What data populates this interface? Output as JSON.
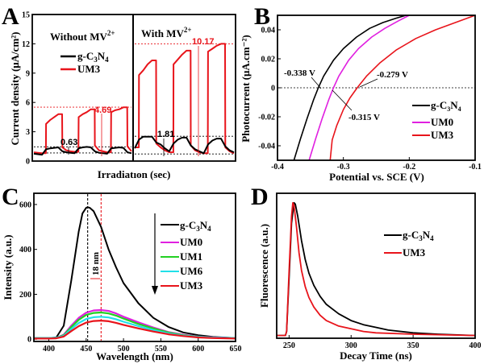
{
  "chart_data": [
    {
      "id": "A",
      "type": "line",
      "panel_label": "A",
      "xlabel": "Irradiatıon (sec)",
      "ylabel": "Current density (μA/cm²)",
      "ylim": [
        0,
        15
      ],
      "yticks": [
        0,
        3,
        6,
        9,
        12,
        15
      ],
      "sections": [
        {
          "title": "Without MV",
          "sup": "2+"
        },
        {
          "title": "With MV",
          "sup": "2+"
        }
      ],
      "legend": [
        {
          "name": "g-C3N4",
          "label_main": "g-C",
          "sub1": "3",
          "mid": "N",
          "sub2": "4",
          "color": "#000000"
        },
        {
          "name": "UM3",
          "label_main": "UM3",
          "color": "#e8141b"
        }
      ],
      "series": [
        {
          "name": "g-C3N4 (without MV2+)",
          "color": "#000000",
          "section": 0,
          "values": [
            0.75,
            0.7,
            0.65,
            1.2,
            1.3,
            1.35,
            1.4,
            1.0,
            0.9,
            0.85,
            0.8,
            1.3,
            1.4,
            1.45,
            1.4,
            1.0,
            0.85,
            0.8,
            0.75,
            1.3,
            1.35,
            1.4,
            1.35,
            0.9,
            0.8
          ]
        },
        {
          "name": "UM3 (without MV2+)",
          "color": "#e8141b",
          "section": 0,
          "values": [
            0.9,
            0.85,
            0.8,
            3.8,
            4.2,
            4.5,
            4.8,
            1.4,
            1.1,
            1.0,
            0.95,
            4.5,
            4.8,
            5.0,
            5.3,
            1.6,
            1.1,
            1.0,
            0.9,
            5.0,
            5.2,
            5.3,
            5.5,
            1.5,
            1.0
          ]
        },
        {
          "name": "g-C3N4 (with MV2+)",
          "color": "#000000",
          "section": 1,
          "values": [
            1.3,
            2.2,
            2.5,
            2.5,
            2.5,
            1.9,
            1.7,
            1.3,
            1.0,
            1.8,
            2.2,
            2.4,
            2.4,
            1.6,
            1.2,
            1.0,
            0.8,
            1.7,
            2.1,
            2.3,
            2.3,
            1.5,
            1.1,
            0.9
          ]
        },
        {
          "name": "UM3 (with MV2+)",
          "color": "#e8141b",
          "section": 1,
          "values": [
            1.4,
            8.8,
            9.3,
            9.9,
            10.3,
            1.8,
            1.4,
            1.1,
            0.9,
            9.9,
            10.4,
            10.9,
            11.3,
            1.6,
            1.1,
            0.9,
            0.8,
            11.2,
            11.5,
            11.8,
            12.0,
            1.4,
            1.0,
            0.8
          ]
        }
      ],
      "reference_lines": [
        {
          "section": 0,
          "value": 5.52,
          "color": "#e8141b"
        },
        {
          "section": 0,
          "value": 1.46,
          "color": "#000000"
        },
        {
          "section": 0,
          "value": 0.83,
          "color": "#000000"
        },
        {
          "section": 1,
          "value": 12.0,
          "color": "#e8141b"
        },
        {
          "section": 1,
          "value": 2.54,
          "color": "#000000"
        },
        {
          "section": 1,
          "value": 0.73,
          "color": "#000000"
        }
      ],
      "annotations": [
        {
          "text": "4.69",
          "color": "#e8141b",
          "section": 0
        },
        {
          "text": "0.63",
          "color": "#000000",
          "section": 0
        },
        {
          "text": "10.17",
          "color": "#e8141b",
          "section": 1
        },
        {
          "text": "1.81",
          "color": "#000000",
          "section": 1
        }
      ]
    },
    {
      "id": "B",
      "type": "line",
      "panel_label": "B",
      "xlabel": "Potential vs. SCE (V)",
      "ylabel": "Photocurrent (μA.cm⁻²)",
      "xlim": [
        -0.4,
        -0.1
      ],
      "ylim": [
        -0.05,
        0.05
      ],
      "xticks": [
        -0.4,
        -0.3,
        -0.2,
        -0.1
      ],
      "xtick_labels": [
        "-0.4",
        "-0.3",
        "-0.2",
        "-0.1"
      ],
      "yticks": [
        -0.04,
        -0.02,
        0,
        0.02,
        0.04
      ],
      "ytick_labels": [
        "-0.04",
        "-0.02",
        "0",
        "0.02",
        "0.04"
      ],
      "legend": [
        {
          "name": "g-C3N4",
          "label_main": "g-C",
          "sub1": "3",
          "mid": "N",
          "sub2": "4",
          "color": "#000000"
        },
        {
          "name": "UM0",
          "label_main": "UM0",
          "color": "#e020e0"
        },
        {
          "name": "UM3",
          "label_main": "UM3",
          "color": "#e8141b"
        }
      ],
      "series": [
        {
          "name": "g-C3N4",
          "color": "#000000",
          "x": [
            -0.375,
            -0.365,
            -0.355,
            -0.345,
            -0.338,
            -0.33,
            -0.315,
            -0.3,
            -0.28,
            -0.26,
            -0.24,
            -0.22,
            -0.205
          ],
          "y": [
            -0.05,
            -0.035,
            -0.021,
            -0.008,
            0.0,
            0.008,
            0.019,
            0.027,
            0.035,
            0.041,
            0.045,
            0.048,
            0.05
          ]
        },
        {
          "name": "UM0",
          "color": "#e020e0",
          "x": [
            -0.352,
            -0.342,
            -0.332,
            -0.322,
            -0.315,
            -0.307,
            -0.292,
            -0.277,
            -0.257,
            -0.237,
            -0.217,
            -0.2
          ],
          "y": [
            -0.05,
            -0.035,
            -0.021,
            -0.008,
            0.0,
            0.008,
            0.019,
            0.027,
            0.035,
            0.041,
            0.046,
            0.05
          ]
        },
        {
          "name": "UM3",
          "color": "#e8141b",
          "x": [
            -0.32,
            -0.317,
            -0.31,
            -0.3,
            -0.29,
            -0.279,
            -0.265,
            -0.245,
            -0.22,
            -0.19,
            -0.16,
            -0.13,
            -0.1
          ],
          "y": [
            -0.05,
            -0.036,
            -0.026,
            -0.015,
            -0.007,
            0.0,
            0.008,
            0.017,
            0.026,
            0.034,
            0.04,
            0.045,
            0.05
          ]
        }
      ],
      "zero_line": 0,
      "annotations": [
        {
          "text": "-0.338 V",
          "x_value": -0.338
        },
        {
          "text": "-0.315 V",
          "x_value": -0.315
        },
        {
          "text": "-0.279 V",
          "x_value": -0.279
        }
      ]
    },
    {
      "id": "C",
      "type": "line",
      "panel_label": "C",
      "xlabel": "Wavelength (nm)",
      "ylabel": "Intensity (a.u.)",
      "xlim": [
        380,
        650
      ],
      "ylim": [
        -10,
        650
      ],
      "xticks": [
        400,
        450,
        500,
        550,
        600,
        650
      ],
      "yticks": [
        0,
        200,
        400,
        600
      ],
      "legend": [
        {
          "name": "g-C3N4",
          "label_main": "g-C",
          "sub1": "3",
          "mid": "N",
          "sub2": "4",
          "color": "#000000"
        },
        {
          "name": "UM0",
          "label_main": "UM0",
          "color": "#e020e0"
        },
        {
          "name": "UM1",
          "label_main": "UM1",
          "color": "#22d022"
        },
        {
          "name": "UM6",
          "label_main": "UM6",
          "color": "#22e0e8"
        },
        {
          "name": "UM3",
          "label_main": "UM3",
          "color": "#e8141b"
        }
      ],
      "series": [
        {
          "name": "g-C3N4",
          "color": "#000000",
          "peak_x": 452,
          "peak_y": 588,
          "baseline": 5,
          "x": [
            380,
            400,
            410,
            420,
            430,
            440,
            445,
            450,
            452,
            455,
            460,
            470,
            480,
            490,
            500,
            520,
            540,
            560,
            580,
            600,
            620,
            650
          ],
          "y": [
            5,
            5,
            8,
            60,
            260,
            480,
            560,
            585,
            588,
            585,
            570,
            500,
            400,
            320,
            250,
            160,
            95,
            55,
            30,
            18,
            10,
            5
          ]
        },
        {
          "name": "UM0",
          "color": "#e020e0",
          "x": [
            380,
            400,
            410,
            420,
            430,
            440,
            450,
            460,
            470,
            480,
            490,
            500,
            520,
            540,
            560,
            580,
            600,
            620,
            650
          ],
          "y": [
            5,
            5,
            6,
            20,
            60,
            95,
            118,
            128,
            130,
            126,
            115,
            100,
            75,
            52,
            32,
            20,
            12,
            8,
            5
          ]
        },
        {
          "name": "UM1",
          "color": "#22d022",
          "x": [
            380,
            400,
            410,
            420,
            430,
            440,
            450,
            460,
            470,
            480,
            490,
            500,
            520,
            540,
            560,
            580,
            600,
            620,
            650
          ],
          "y": [
            5,
            5,
            6,
            18,
            54,
            86,
            108,
            117,
            119,
            115,
            105,
            92,
            68,
            48,
            30,
            18,
            11,
            7,
            5
          ]
        },
        {
          "name": "UM6",
          "color": "#22e0e8",
          "x": [
            380,
            400,
            410,
            420,
            430,
            440,
            450,
            460,
            470,
            480,
            490,
            500,
            520,
            540,
            560,
            580,
            600,
            620,
            650
          ],
          "y": [
            5,
            5,
            6,
            15,
            45,
            72,
            90,
            98,
            100,
            97,
            89,
            78,
            58,
            41,
            26,
            16,
            10,
            7,
            5
          ]
        },
        {
          "name": "UM3",
          "color": "#e8141b",
          "x": [
            380,
            400,
            410,
            420,
            430,
            440,
            450,
            460,
            470,
            480,
            490,
            500,
            520,
            540,
            560,
            580,
            600,
            620,
            650
          ],
          "y": [
            3,
            3,
            4,
            12,
            36,
            58,
            74,
            81,
            83,
            80,
            73,
            64,
            48,
            34,
            22,
            14,
            8,
            5,
            3
          ]
        }
      ],
      "vlines": [
        {
          "x_value": 452,
          "color": "#000000"
        },
        {
          "x_value": 470,
          "color": "#e8141b"
        }
      ],
      "annotations": [
        {
          "text": "18 nm"
        }
      ]
    },
    {
      "id": "D",
      "type": "line",
      "panel_label": "D",
      "xlabel": "Decay Time (ns)",
      "ylabel": "Fluorescence (a.u.)",
      "xlim": [
        240,
        400
      ],
      "ylim": [
        0,
        1.07
      ],
      "xticks": [
        250,
        300,
        350,
        400
      ],
      "legend": [
        {
          "name": "g-C3N4",
          "label_main": "g-C",
          "sub1": "3",
          "mid": "N",
          "sub2": "4",
          "color": "#000000"
        },
        {
          "name": "UM3",
          "label_main": "UM3",
          "color": "#e8141b"
        }
      ],
      "series": [
        {
          "name": "g-C3N4",
          "color": "#000000",
          "x": [
            240,
            247,
            248,
            250,
            252,
            254,
            255,
            257,
            260,
            263,
            266,
            270,
            275,
            280,
            290,
            300,
            310,
            320,
            330,
            350,
            370,
            400
          ],
          "y": [
            0.02,
            0.02,
            0.05,
            0.45,
            0.85,
            1.0,
            0.99,
            0.9,
            0.72,
            0.58,
            0.48,
            0.39,
            0.31,
            0.25,
            0.18,
            0.13,
            0.1,
            0.08,
            0.06,
            0.04,
            0.03,
            0.02
          ]
        },
        {
          "name": "UM3",
          "color": "#e8141b",
          "x": [
            240,
            247,
            248,
            250,
            252,
            253,
            254,
            256,
            258,
            260,
            263,
            266,
            270,
            275,
            280,
            290,
            300,
            310,
            320,
            350,
            400
          ],
          "y": [
            0.02,
            0.02,
            0.05,
            0.5,
            0.9,
            1.0,
            0.98,
            0.82,
            0.63,
            0.5,
            0.38,
            0.3,
            0.23,
            0.17,
            0.13,
            0.09,
            0.07,
            0.05,
            0.04,
            0.03,
            0.02
          ]
        }
      ]
    }
  ]
}
